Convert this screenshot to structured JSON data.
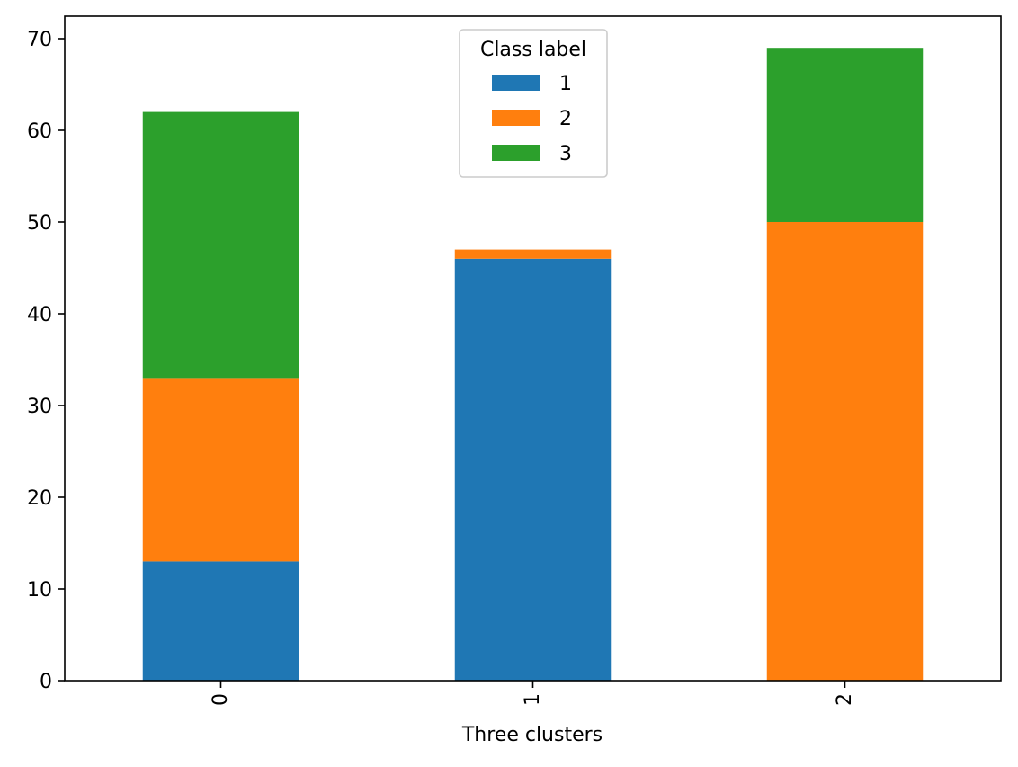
{
  "chart_data": {
    "type": "bar",
    "stacked": true,
    "categories": [
      "0",
      "1",
      "2"
    ],
    "series": [
      {
        "name": "1",
        "values": [
          13,
          46,
          0
        ],
        "color": "#1f77b4"
      },
      {
        "name": "2",
        "values": [
          20,
          1,
          50
        ],
        "color": "#ff7f0e"
      },
      {
        "name": "3",
        "values": [
          29,
          0,
          19
        ],
        "color": "#2ca02c"
      }
    ],
    "title": "",
    "xlabel": "Three clusters",
    "ylabel": "",
    "ylim": [
      0,
      72.45
    ],
    "yticks": [
      0,
      10,
      20,
      30,
      40,
      50,
      60,
      70
    ],
    "xtick_rotation": 90,
    "grid": false,
    "legend": {
      "title": "Class label",
      "placement": "upper center"
    }
  }
}
